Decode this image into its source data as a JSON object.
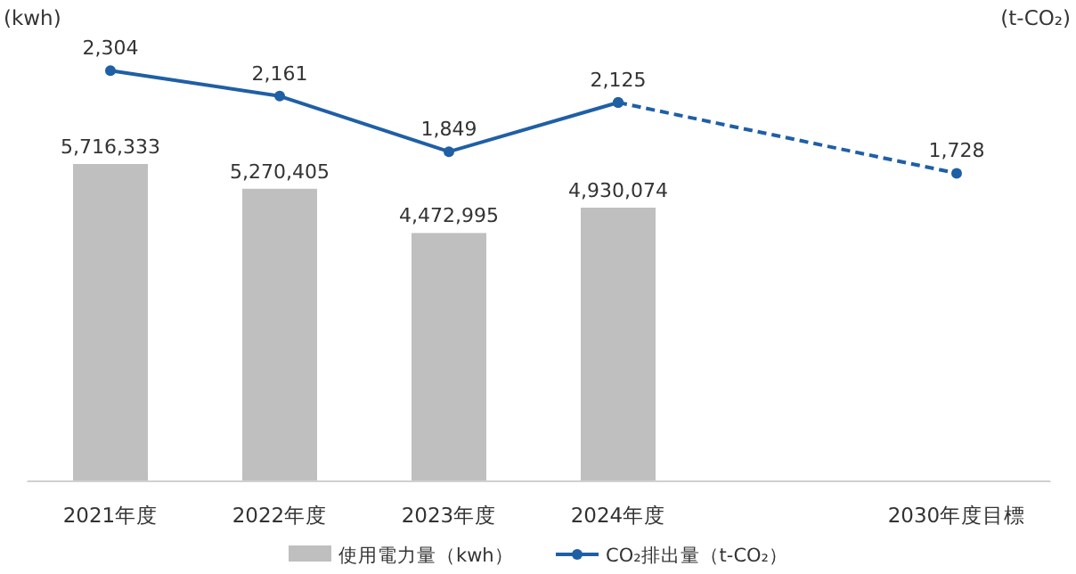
{
  "chart_data": {
    "type": "bar",
    "annotations": [
      "(kwh)",
      "(t-CO₂)"
    ],
    "ylim": [
      0,
      8350000
    ],
    "y2lim": [
      0,
      2600
    ],
    "categories": [
      "2021年度",
      "2022年度",
      "2023年度",
      "2024年度",
      null,
      "2030年度目標"
    ],
    "tick_labels": "x",
    "legend": "bottom",
    "series": [
      {
        "name": "使用電力量（kwh）",
        "color": "#bfbfbf",
        "values": [
          5716333,
          5270405,
          4472995,
          4930074,
          null,
          null
        ],
        "value_labels": [
          "5,716,333",
          "5,270,405",
          "4,472,995",
          "4,930,074",
          null,
          null
        ]
      },
      {
        "type": "line",
        "name": "CO₂排出量（t-CO₂）",
        "color": "#1f5fa5",
        "axis": "y2",
        "marker": "circle",
        "line_style": "solid",
        "values": [
          2304,
          2161,
          1849,
          2125,
          null,
          null
        ],
        "value_labels": [
          "2,304",
          "2,161",
          "1,849",
          "2,125",
          null,
          null
        ]
      },
      {
        "type": "line",
        "color": "#1f5fa5",
        "axis": "y2",
        "marker": "circle",
        "line_style": "dashed",
        "values": [
          null,
          null,
          null,
          2125,
          null,
          1728
        ],
        "value_labels": [
          null,
          null,
          null,
          null,
          null,
          "1,728"
        ]
      }
    ]
  }
}
